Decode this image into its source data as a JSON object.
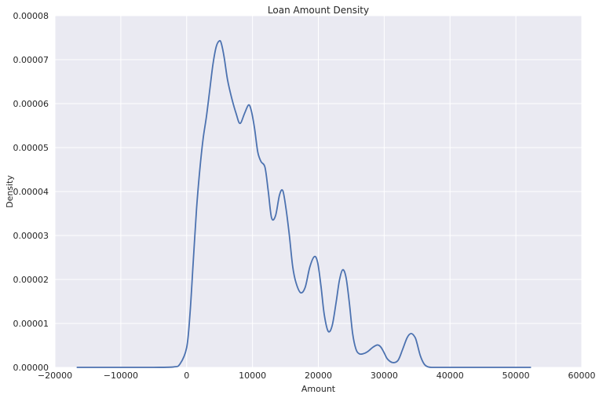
{
  "chart_data": {
    "type": "line",
    "title": "Loan Amount Density",
    "xlabel": "Amount",
    "ylabel": "Density",
    "xlim": [
      -20000,
      60000
    ],
    "ylim": [
      0,
      8e-05
    ],
    "xticks": [
      -20000,
      -10000,
      0,
      10000,
      20000,
      30000,
      40000,
      50000,
      60000
    ],
    "xtick_labels": [
      "−20000",
      "−10000",
      "0",
      "10000",
      "20000",
      "30000",
      "40000",
      "50000",
      "60000"
    ],
    "yticks": [
      0,
      1e-05,
      2e-05,
      3e-05,
      4e-05,
      5e-05,
      6e-05,
      7e-05,
      8e-05
    ],
    "ytick_labels": [
      "0.00000",
      "0.00001",
      "0.00002",
      "0.00003",
      "0.00004",
      "0.00005",
      "0.00006",
      "0.00007",
      "0.00008"
    ],
    "grid": true,
    "series": [
      {
        "color": "#4c72b0",
        "x": [
          -16700,
          -10000,
          -5000,
          -2000,
          -1000,
          0,
          500,
          1000,
          1500,
          2000,
          2500,
          3000,
          3500,
          4000,
          4500,
          5000,
          5300,
          5700,
          6200,
          6800,
          7500,
          8100,
          8800,
          9400,
          9800,
          10300,
          10800,
          11300,
          11900,
          12400,
          12900,
          13500,
          14100,
          14600,
          15100,
          15600,
          16100,
          16600,
          17300,
          18000,
          18700,
          19400,
          19900,
          20400,
          20900,
          21500,
          22100,
          22700,
          23200,
          23700,
          24200,
          24700,
          25200,
          25700,
          26200,
          26800,
          27500,
          28300,
          29000,
          29500,
          30000,
          30500,
          31300,
          32100,
          32800,
          33500,
          34100,
          34700,
          35000,
          35500,
          36100,
          36700,
          37400,
          40000,
          45000,
          52300
        ],
        "y": [
          0,
          0,
          0,
          1e-07,
          8e-07,
          4.5e-06,
          1.2e-05,
          2.4e-05,
          3.6e-05,
          4.5e-05,
          5.2e-05,
          5.7e-05,
          6.3e-05,
          6.9e-05,
          7.3e-05,
          7.43e-05,
          7.35e-05,
          7.05e-05,
          6.55e-05,
          6.15e-05,
          5.78e-05,
          5.55e-05,
          5.78e-05,
          5.97e-05,
          5.85e-05,
          5.45e-05,
          4.9e-05,
          4.68e-05,
          4.55e-05,
          4e-05,
          3.4e-05,
          3.45e-05,
          3.92e-05,
          4.02e-05,
          3.6e-05,
          3e-05,
          2.3e-05,
          1.93e-05,
          1.7e-05,
          1.82e-05,
          2.28e-05,
          2.52e-05,
          2.38e-05,
          1.85e-05,
          1.2e-05,
          8.2e-06,
          9.5e-06,
          1.48e-05,
          1.98e-05,
          2.22e-05,
          2.05e-05,
          1.48e-05,
          7.8e-06,
          4.2e-06,
          3.1e-06,
          3.1e-06,
          3.6e-06,
          4.6e-06,
          5.1e-06,
          4.6e-06,
          3.3e-06,
          1.9e-06,
          1.1e-06,
          1.6e-06,
          4.1e-06,
          6.8e-06,
          7.7e-06,
          6.8e-06,
          5.4e-06,
          2.6e-06,
          7e-07,
          1e-07,
          0,
          0,
          0,
          0
        ]
      }
    ]
  }
}
